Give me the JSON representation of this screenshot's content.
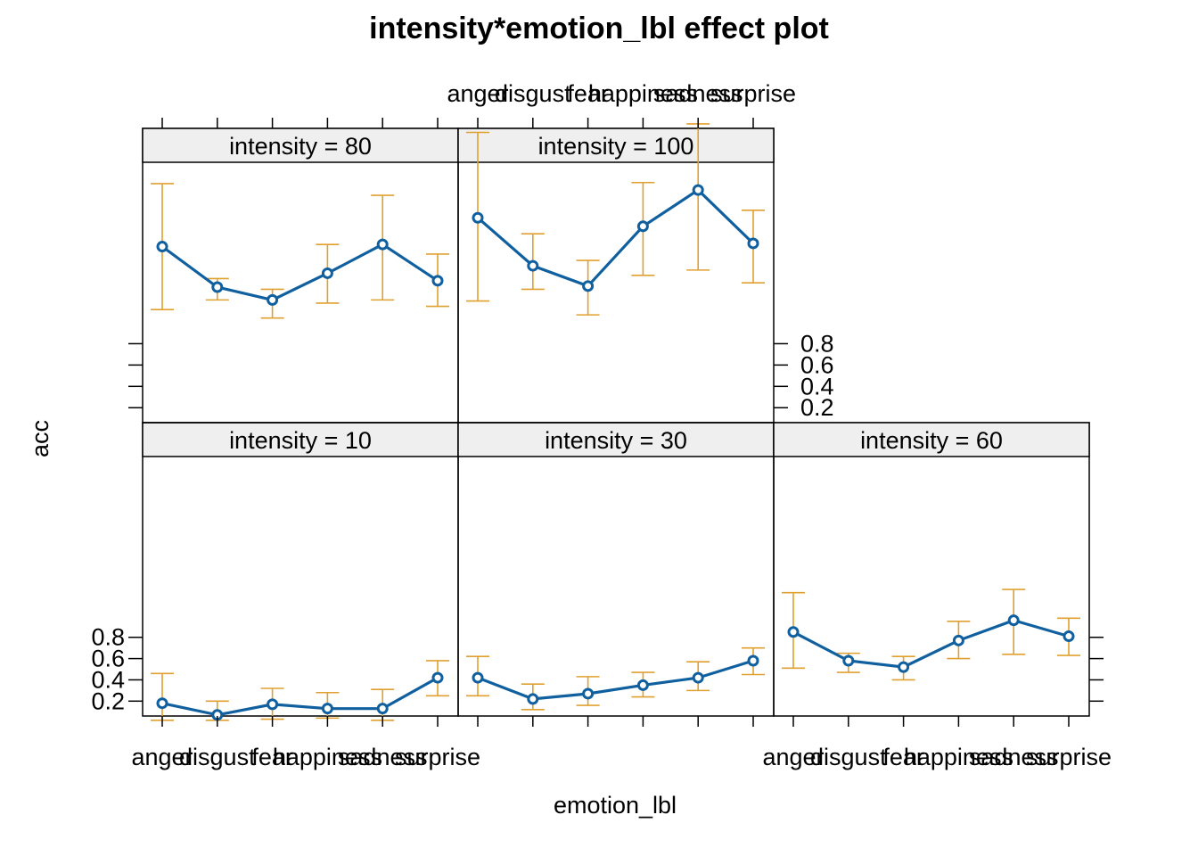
{
  "chart_data": {
    "type": "line",
    "title": "intensity*emotion_lbl effect plot",
    "xlabel": "emotion_lbl",
    "ylabel": "acc",
    "categories": [
      "anger",
      "disgust",
      "fear",
      "happiness",
      "sadness",
      "surprise"
    ],
    "y_ticks": [
      "0.2",
      "0.4",
      "0.6",
      "0.8"
    ],
    "y_tick_values": [
      0.2,
      0.4,
      0.6,
      0.8
    ],
    "ylim": [
      0.06,
      2.5
    ],
    "line_color": "#1060a0",
    "errorbar_color": "#e0a030",
    "strip_color": "#efefef",
    "panels": [
      {
        "name": "intensity = 10",
        "strip": "intensity = 10",
        "values": [
          0.18,
          0.07,
          0.17,
          0.13,
          0.13,
          0.42
        ],
        "lower": [
          0.02,
          0.02,
          0.03,
          0.04,
          0.02,
          0.25
        ],
        "upper": [
          0.46,
          0.2,
          0.32,
          0.28,
          0.31,
          0.58
        ]
      },
      {
        "name": "intensity = 30",
        "strip": "intensity = 30",
        "values": [
          0.42,
          0.22,
          0.27,
          0.35,
          0.42,
          0.58
        ],
        "lower": [
          0.25,
          0.12,
          0.16,
          0.24,
          0.3,
          0.45
        ],
        "upper": [
          0.62,
          0.36,
          0.43,
          0.47,
          0.57,
          0.7
        ]
      },
      {
        "name": "intensity = 60",
        "strip": "intensity = 60",
        "values": [
          0.85,
          0.58,
          0.52,
          0.77,
          0.96,
          0.81
        ],
        "lower": [
          0.51,
          0.47,
          0.4,
          0.6,
          0.64,
          0.63
        ],
        "upper": [
          1.22,
          0.65,
          0.62,
          0.95,
          1.25,
          0.98
        ]
      },
      {
        "name": "intensity = 80",
        "strip": "intensity = 80",
        "values": [
          1.71,
          1.33,
          1.21,
          1.46,
          1.73,
          1.39
        ],
        "lower": [
          1.12,
          1.21,
          1.04,
          1.18,
          1.21,
          1.15
        ],
        "upper": [
          2.3,
          1.41,
          1.31,
          1.73,
          2.19,
          1.64
        ]
      },
      {
        "name": "intensity = 100",
        "strip": "intensity = 100",
        "values": [
          1.98,
          1.53,
          1.34,
          1.9,
          2.24,
          1.74
        ],
        "lower": [
          1.2,
          1.31,
          1.07,
          1.44,
          1.49,
          1.37
        ],
        "upper": [
          2.78,
          1.83,
          1.58,
          2.31,
          2.86,
          2.05
        ]
      }
    ]
  }
}
